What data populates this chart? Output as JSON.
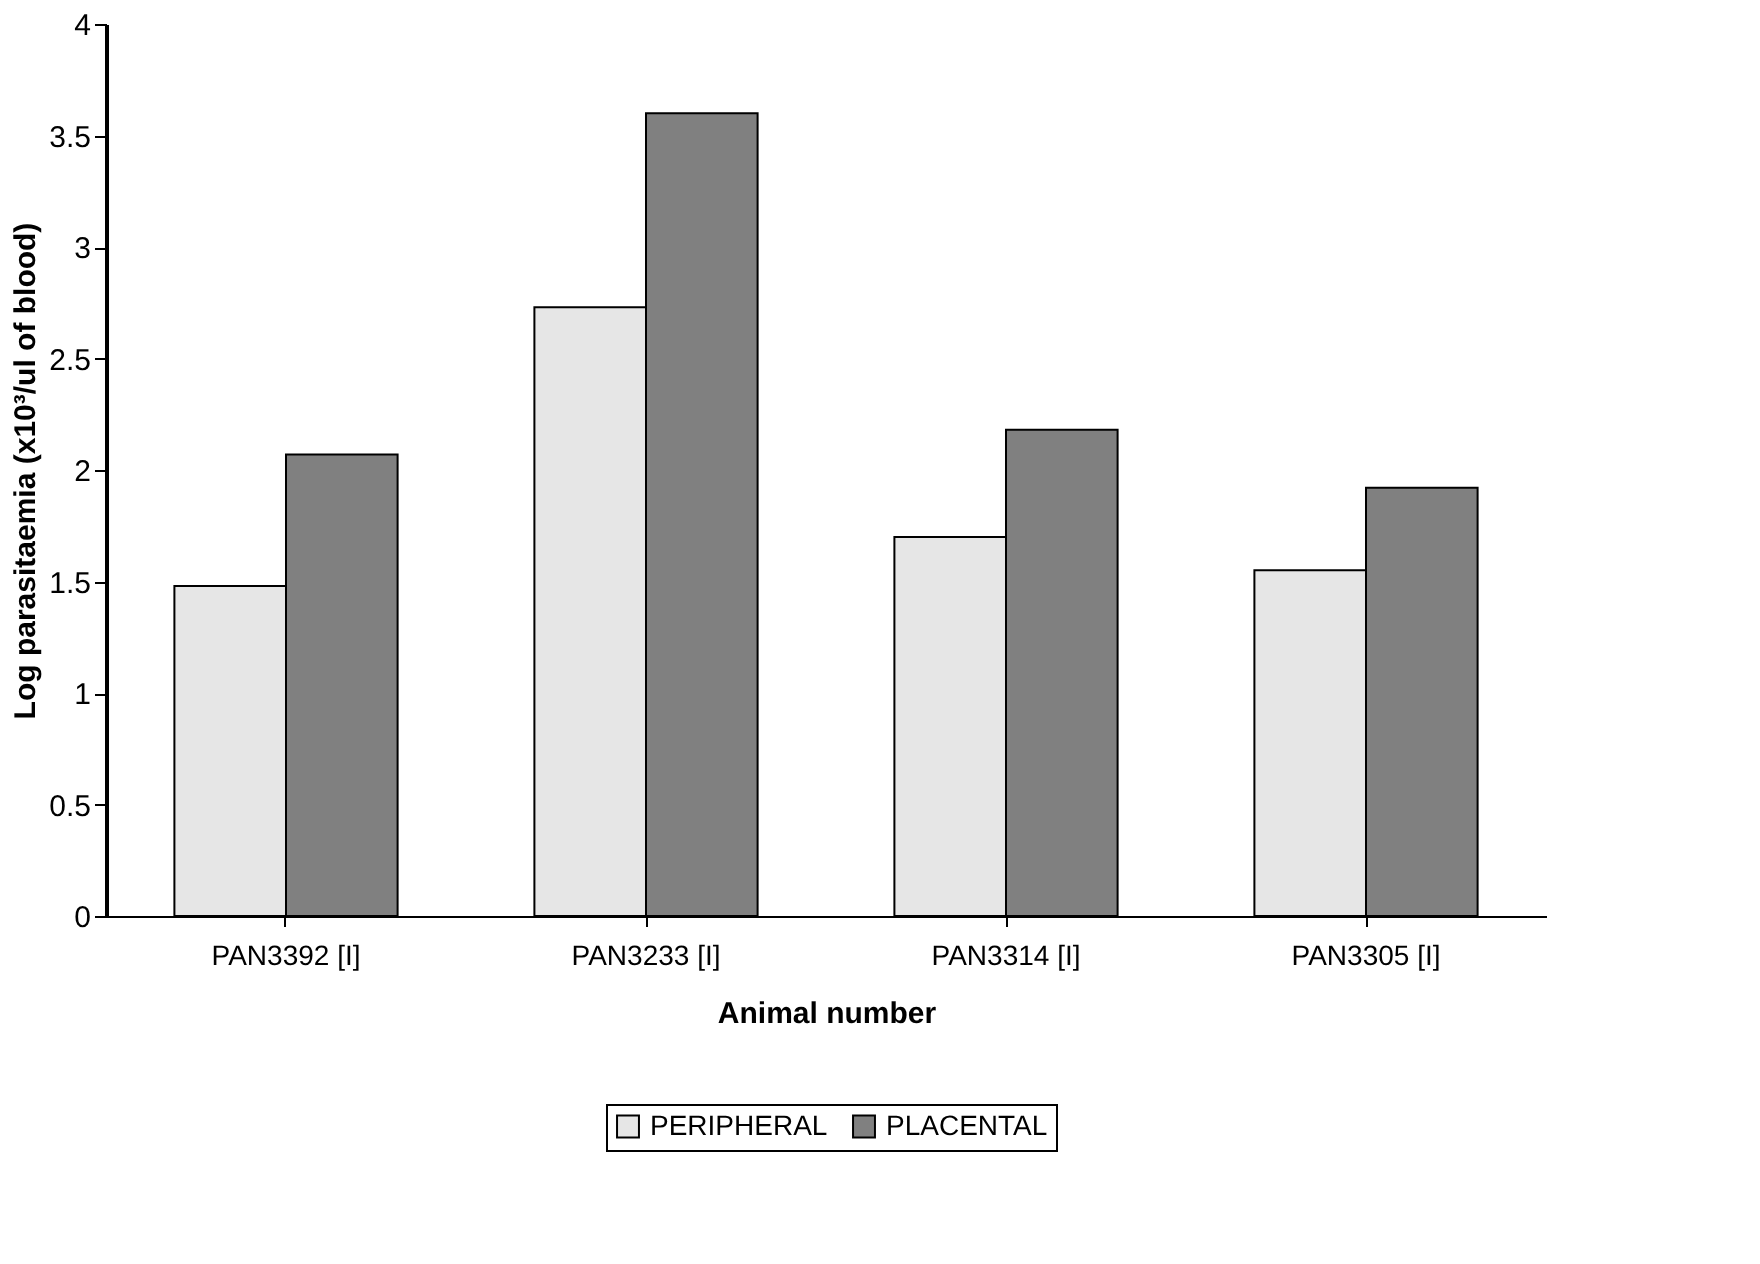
{
  "chart_data": {
    "type": "bar",
    "xlabel": "Animal number",
    "ylabel": "Log parasitaemia (x10³/ul of blood)",
    "categories": [
      "PAN3392 [I]",
      "PAN3233 [I]",
      "PAN3314 [I]",
      "PAN3305 [I]"
    ],
    "series": [
      {
        "name": "PERIPHERAL",
        "color": "#e6e6e6",
        "values": [
          1.48,
          2.73,
          1.7,
          1.55
        ]
      },
      {
        "name": "PLACENTAL",
        "color": "#808080",
        "values": [
          2.07,
          3.6,
          2.18,
          1.92
        ]
      }
    ],
    "ylim": [
      0,
      4
    ],
    "yticks": [
      0,
      0.5,
      1,
      1.5,
      2,
      2.5,
      3,
      3.5,
      4
    ],
    "grid": false,
    "legend": "bottom"
  }
}
